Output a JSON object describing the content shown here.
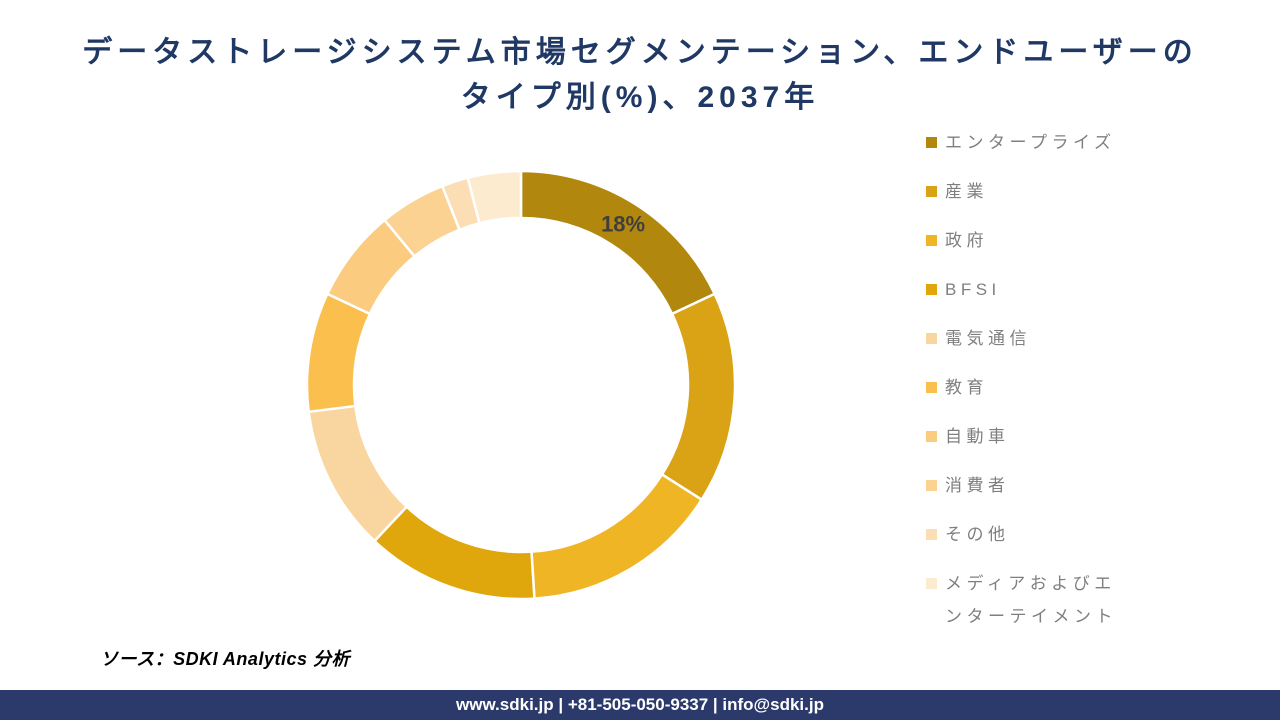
{
  "title": {
    "line1": "データストレージシステム市場セグメンテーション、エンドユーザーの",
    "line2": "タイプ別(%)、2037年"
  },
  "chart_data": {
    "type": "pie",
    "subtype": "donut",
    "title": "データストレージシステム市場セグメンテーション、エンドユーザーのタイプ別(%)、2037年",
    "unit": "%",
    "categories": [
      "エンタープライズ",
      "産業",
      "政府",
      "BFSI",
      "電気通信",
      "教育",
      "自動車",
      "消費者",
      "その他",
      "メディアおよびエンターテイメント"
    ],
    "values": [
      18,
      16,
      15,
      13,
      11,
      9,
      7,
      5,
      2,
      4
    ],
    "colors": [
      "#B2870D",
      "#D9A315",
      "#F0B524",
      "#E0A70D",
      "#F9D5A0",
      "#FBBF4D",
      "#FBCB80",
      "#FCD292",
      "#FBDEB4",
      "#FDEBCF"
    ],
    "data_labels": [
      "18%",
      "",
      "",
      "",
      "",
      "",
      "",
      "",
      "",
      ""
    ],
    "data_label_color": "#3F3F3F",
    "start_angle_deg": 0,
    "direction": "clockwise",
    "legend_position": "right",
    "segment_gap_color": "#FFFFFF"
  },
  "source_note": "ソース：SDKI Analytics 分析",
  "footer": {
    "text": "www.sdki.jp | +81-505-050-9337 | info@sdki.jp"
  },
  "theme": {
    "title_color": "#1F3864",
    "legend_text_color": "#7F7F7F",
    "footer_bg": "#2B3A6B",
    "footer_text_color": "#FFFFFF",
    "background": "#FFFFFF"
  }
}
